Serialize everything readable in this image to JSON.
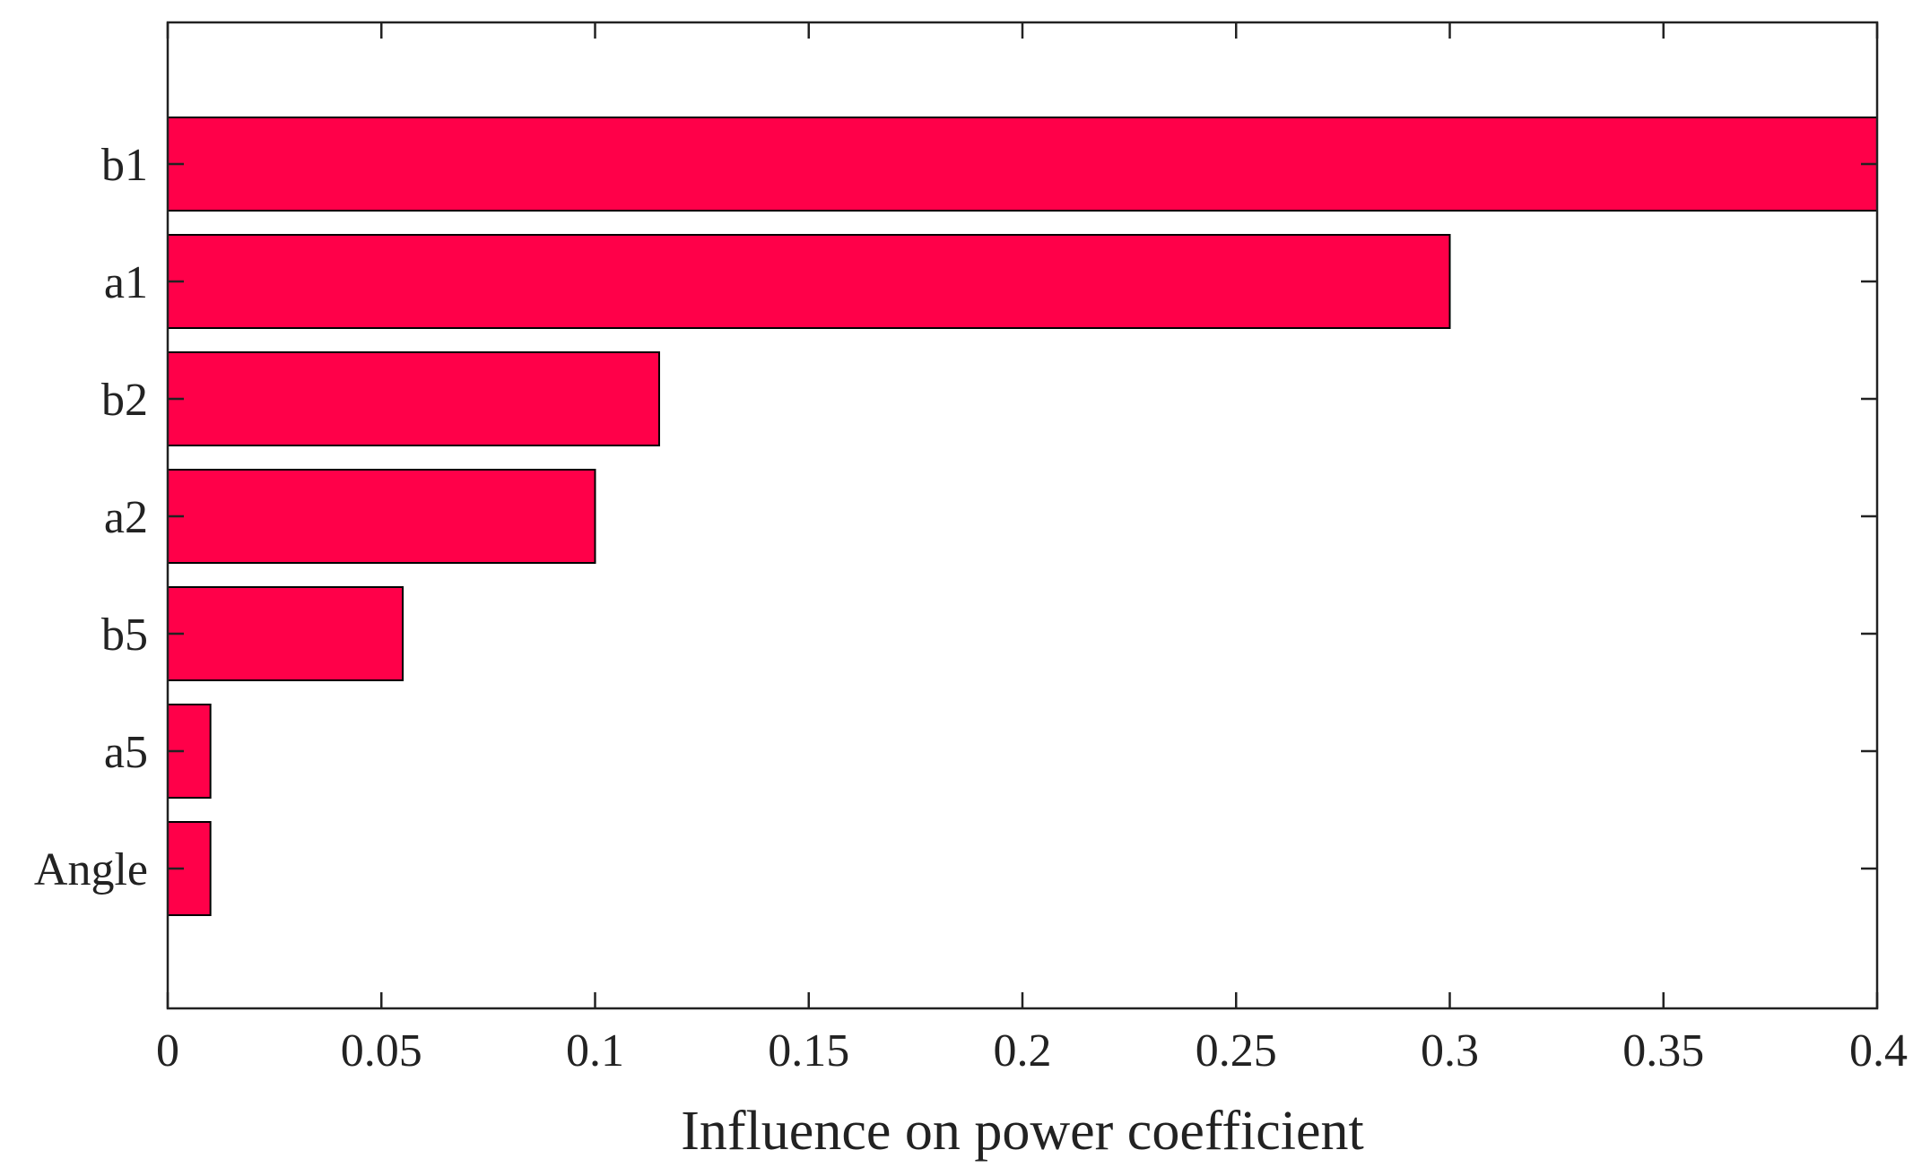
{
  "chart_data": {
    "type": "bar",
    "orientation": "horizontal",
    "categories": [
      "b1",
      "a1",
      "b2",
      "a2",
      "b5",
      "a5",
      "Angle"
    ],
    "values": [
      0.4,
      0.3,
      0.115,
      0.1,
      0.055,
      0.01,
      0.01
    ],
    "title": "",
    "xlabel": "Influence on power coefficient",
    "ylabel": "",
    "xlim": [
      0,
      0.4
    ],
    "xticks": [
      0,
      0.05,
      0.1,
      0.15,
      0.2,
      0.25,
      0.3,
      0.35,
      0.4
    ],
    "xtick_labels": [
      "0",
      "0.05",
      "0.1",
      "0.15",
      "0.2",
      "0.25",
      "0.3",
      "0.35",
      "0.4"
    ],
    "grid": false,
    "legend": "none",
    "colors": {
      "bar_fill": "#ff0049",
      "bar_stroke": "#000000",
      "axis": "#222222"
    }
  }
}
